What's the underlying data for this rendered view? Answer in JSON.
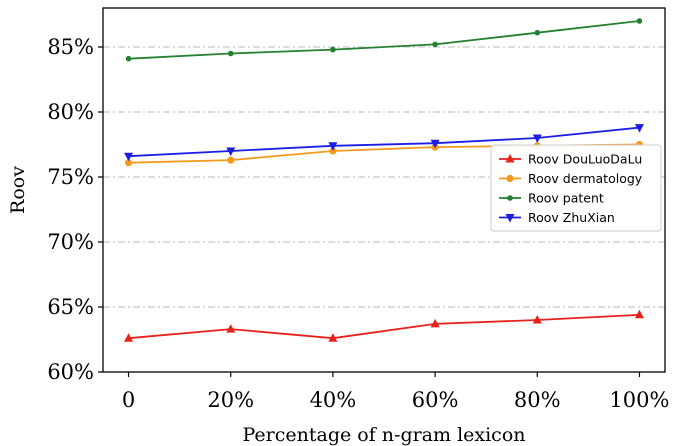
{
  "chart_data": {
    "type": "line",
    "title": "",
    "xlabel": "Percentage of n-gram lexicon",
    "ylabel": "Roov",
    "categories": [
      "0",
      "20%",
      "40%",
      "60%",
      "80%",
      "100%"
    ],
    "x": [
      0,
      20,
      40,
      60,
      80,
      100
    ],
    "xlim": [
      -5,
      105
    ],
    "ylim": [
      60,
      88
    ],
    "yticks": [
      60,
      65,
      70,
      75,
      80,
      85
    ],
    "ytick_labels": [
      "60%",
      "65%",
      "70%",
      "75%",
      "80%",
      "85%"
    ],
    "grid": "horizontal dashed",
    "legend_position": "center-right",
    "series": [
      {
        "name": "Roov DouLuoDaLu",
        "color": "#e8211b",
        "marker": "triangle-up",
        "values": [
          62.6,
          63.3,
          62.6,
          63.7,
          64.0,
          64.4
        ]
      },
      {
        "name": "Roov dermatology",
        "color": "#f59a1c",
        "marker": "circle",
        "values": [
          76.1,
          76.3,
          77.0,
          77.3,
          77.4,
          77.5
        ]
      },
      {
        "name": "Roov patent",
        "color": "#23812f",
        "marker": "dot",
        "values": [
          84.1,
          84.5,
          84.8,
          85.2,
          86.1,
          87.0
        ]
      },
      {
        "name": "Roov ZhuXian",
        "color": "#1c1ee6",
        "marker": "triangle-down",
        "values": [
          76.6,
          77.0,
          77.4,
          77.6,
          78.0,
          78.8
        ]
      }
    ]
  }
}
